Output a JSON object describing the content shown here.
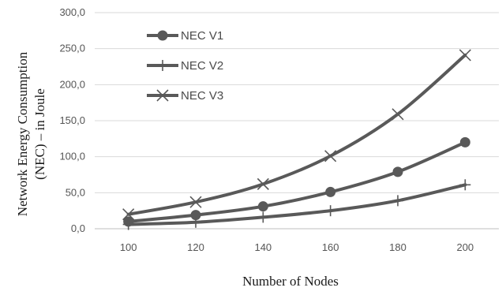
{
  "chart_data": {
    "type": "line",
    "x": [
      100,
      120,
      140,
      160,
      180,
      200
    ],
    "series": [
      {
        "name": "NEC V1",
        "marker": "circle",
        "values": [
          10,
          19,
          31,
          51,
          79,
          120
        ]
      },
      {
        "name": "NEC V2",
        "marker": "plus",
        "values": [
          6,
          9,
          16,
          25,
          39,
          61
        ]
      },
      {
        "name": "NEC V3",
        "marker": "x",
        "values": [
          20,
          37,
          62,
          101,
          159,
          241
        ]
      }
    ],
    "xlabel": "Number of Nodes",
    "ylabel_line1": "Network Energy Consumption",
    "ylabel_line2": "(NEC) – in Joule",
    "ylim": [
      0,
      300
    ],
    "yticks": [
      "0,0",
      "50,0",
      "100,0",
      "150,0",
      "200,0",
      "250,0",
      "300,0"
    ],
    "xticks": [
      "100",
      "120",
      "140",
      "160",
      "180",
      "200"
    ],
    "grid": "horizontal",
    "legend_position": "top-left",
    "line_color": "#595959"
  }
}
